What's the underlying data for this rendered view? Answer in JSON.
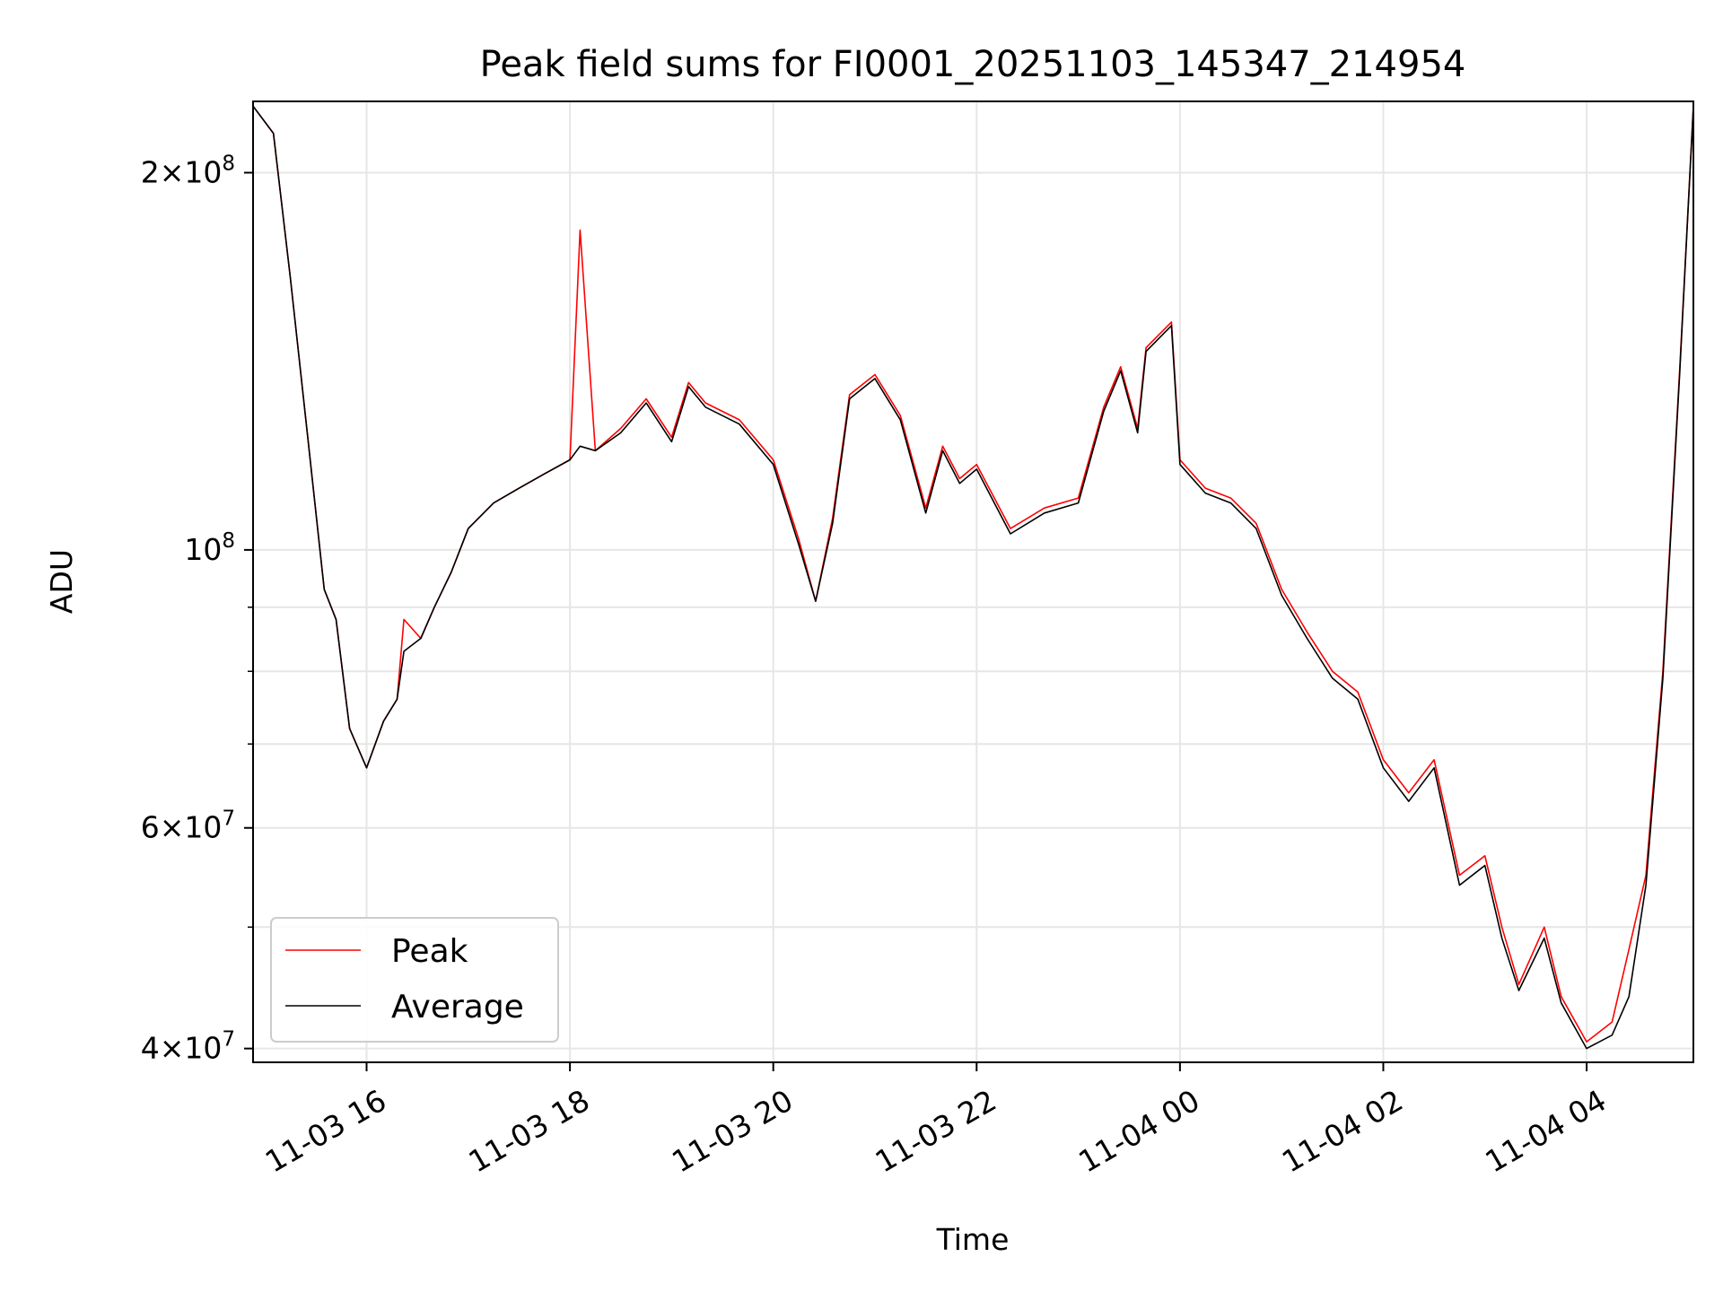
{
  "chart_data": {
    "type": "line",
    "title": "Peak field sums for FI0001_20251103_145347_214954",
    "xlabel": "Time",
    "ylabel": "ADU",
    "yscale": "log",
    "ylim": [
      39000000,
      228000000
    ],
    "xlim": [
      "2025-11-03T14:53",
      "2025-11-04T05:03"
    ],
    "grid": true,
    "legend_position": "lower-left",
    "x_tick_labels": [
      "11-03 16",
      "11-03 18",
      "11-03 20",
      "11-03 22",
      "11-04 00",
      "11-04 02",
      "11-04 04"
    ],
    "x_tick_values": [
      "2025-11-03T16:00",
      "2025-11-03T18:00",
      "2025-11-03T20:00",
      "2025-11-03T22:00",
      "2025-11-04T00:00",
      "2025-11-04T02:00",
      "2025-11-04T04:00"
    ],
    "y_ticks": [
      {
        "value": 40000000,
        "mantissa": "4",
        "exponent": "7"
      },
      {
        "value": 60000000,
        "mantissa": "6",
        "exponent": "7"
      },
      {
        "value": 100000000,
        "mantissa": "",
        "exponent": "8"
      },
      {
        "value": 200000000,
        "mantissa": "2",
        "exponent": "8"
      }
    ],
    "y_minor_ticks": [
      50000000,
      70000000,
      80000000,
      90000000
    ],
    "x": [
      "2025-11-03T14:53",
      "2025-11-03T15:05",
      "2025-11-03T15:15",
      "2025-11-03T15:25",
      "2025-11-03T15:35",
      "2025-11-03T15:42",
      "2025-11-03T15:50",
      "2025-11-03T16:00",
      "2025-11-03T16:10",
      "2025-11-03T16:18",
      "2025-11-03T16:22",
      "2025-11-03T16:32",
      "2025-11-03T16:40",
      "2025-11-03T16:50",
      "2025-11-03T17:00",
      "2025-11-03T17:15",
      "2025-11-03T17:30",
      "2025-11-03T17:45",
      "2025-11-03T18:00",
      "2025-11-03T18:06",
      "2025-11-03T18:15",
      "2025-11-03T18:30",
      "2025-11-03T18:45",
      "2025-11-03T19:00",
      "2025-11-03T19:10",
      "2025-11-03T19:20",
      "2025-11-03T19:40",
      "2025-11-03T20:00",
      "2025-11-03T20:15",
      "2025-11-03T20:25",
      "2025-11-03T20:35",
      "2025-11-03T20:45",
      "2025-11-03T21:00",
      "2025-11-03T21:15",
      "2025-11-03T21:30",
      "2025-11-03T21:40",
      "2025-11-03T21:50",
      "2025-11-03T22:00",
      "2025-11-03T22:20",
      "2025-11-03T22:40",
      "2025-11-03T23:00",
      "2025-11-03T23:15",
      "2025-11-03T23:25",
      "2025-11-03T23:35",
      "2025-11-03T23:40",
      "2025-11-03T23:55",
      "2025-11-04T00:00",
      "2025-11-04T00:15",
      "2025-11-04T00:30",
      "2025-11-04T00:45",
      "2025-11-04T01:00",
      "2025-11-04T01:15",
      "2025-11-04T01:30",
      "2025-11-04T01:45",
      "2025-11-04T02:00",
      "2025-11-04T02:15",
      "2025-11-04T02:30",
      "2025-11-04T02:45",
      "2025-11-04T03:00",
      "2025-11-04T03:10",
      "2025-11-04T03:20",
      "2025-11-04T03:35",
      "2025-11-04T03:45",
      "2025-11-04T04:00",
      "2025-11-04T04:15",
      "2025-11-04T04:25",
      "2025-11-04T04:35",
      "2025-11-04T04:45",
      "2025-11-04T04:55",
      "2025-11-04T05:03"
    ],
    "series": [
      {
        "name": "Peak",
        "color": "#ff0000",
        "values": [
          226000000,
          215000000,
          165000000,
          124000000,
          93000000,
          88000000,
          72000000,
          67000000,
          73000000,
          76000000,
          88000000,
          85000000,
          90000000,
          96000000,
          104000000,
          109000000,
          112000000,
          115000000,
          118000000,
          180000000,
          120000000,
          125000000,
          132000000,
          123000000,
          136000000,
          131000000,
          127000000,
          118000000,
          102000000,
          91000000,
          106000000,
          133000000,
          138000000,
          128000000,
          108000000,
          121000000,
          114000000,
          117000000,
          104000000,
          108000000,
          110000000,
          130000000,
          140000000,
          125000000,
          145000000,
          152000000,
          118000000,
          112000000,
          110000000,
          105000000,
          93000000,
          86000000,
          80000000,
          77000000,
          68000000,
          64000000,
          68000000,
          55000000,
          57000000,
          50000000,
          45000000,
          50000000,
          44000000,
          40500000,
          42000000,
          48000000,
          55000000,
          80000000,
          140000000,
          226000000
        ]
      },
      {
        "name": "Average",
        "color": "#000000",
        "values": [
          226000000,
          215000000,
          165000000,
          124000000,
          93000000,
          88000000,
          72000000,
          67000000,
          73000000,
          76000000,
          83000000,
          85000000,
          90000000,
          96000000,
          104000000,
          109000000,
          112000000,
          115000000,
          118000000,
          121000000,
          120000000,
          124000000,
          131000000,
          122000000,
          135000000,
          130000000,
          126000000,
          117000000,
          101000000,
          91000000,
          105000000,
          132000000,
          137000000,
          127000000,
          107000000,
          120000000,
          113000000,
          116000000,
          103000000,
          107000000,
          109000000,
          129000000,
          139000000,
          124000000,
          144000000,
          151000000,
          117000000,
          111000000,
          109000000,
          104000000,
          92000000,
          85000000,
          79000000,
          76000000,
          67000000,
          63000000,
          67000000,
          54000000,
          56000000,
          49000000,
          44500000,
          49000000,
          43500000,
          40000000,
          41000000,
          44000000,
          54000000,
          79000000,
          139000000,
          226000000
        ]
      }
    ]
  }
}
